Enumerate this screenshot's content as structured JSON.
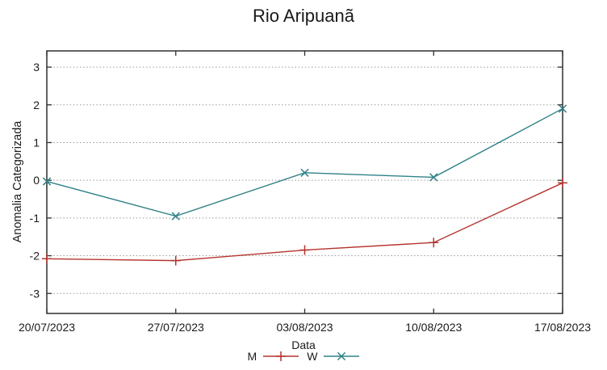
{
  "colors": {
    "axis": "#2e2e2e",
    "grid": "#999999",
    "text": "#1a1a1a",
    "background": "#ffffff",
    "series_m": "#b5342e",
    "series_w": "#2f8287"
  },
  "chart_data": {
    "type": "line",
    "title": "Rio Aripuanã",
    "xlabel": "Data",
    "ylabel": "Anomalia Categorizada",
    "categories": [
      "20/07/2023",
      "27/07/2023",
      "03/08/2023",
      "10/08/2023",
      "17/08/2023"
    ],
    "yticks": [
      3,
      2,
      1,
      0,
      -1,
      -2,
      -3
    ],
    "ylim": [
      -3.53,
      3.43
    ],
    "grid": "horizontal-dashed",
    "legend_position": "below-center",
    "series": [
      {
        "name": "M",
        "color": "#b5342e",
        "marker": "plus",
        "values": [
          -2.08,
          -2.13,
          -1.85,
          -1.65,
          -0.07
        ]
      },
      {
        "name": "W",
        "color": "#2f8287",
        "marker": "cross",
        "values": [
          -0.03,
          -0.95,
          0.2,
          0.08,
          1.9
        ]
      }
    ]
  }
}
